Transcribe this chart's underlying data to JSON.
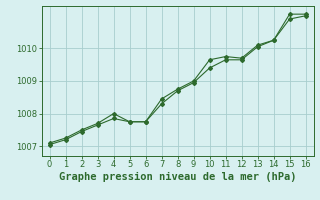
{
  "x": [
    0,
    1,
    2,
    3,
    4,
    5,
    6,
    7,
    8,
    9,
    10,
    11,
    12,
    13,
    14,
    15,
    16
  ],
  "line1": [
    1007.05,
    1007.2,
    1007.45,
    1007.65,
    1007.85,
    1007.75,
    1007.75,
    1008.3,
    1008.7,
    1008.95,
    1009.4,
    1009.65,
    1009.65,
    1010.05,
    1010.25,
    1010.9,
    1011.0
  ],
  "line2": [
    1007.1,
    1007.25,
    1007.5,
    1007.7,
    1008.0,
    1007.75,
    1007.75,
    1008.45,
    1008.75,
    1009.0,
    1009.65,
    1009.75,
    1009.7,
    1010.1,
    1010.25,
    1011.05,
    1011.05
  ],
  "line_color": "#2d6a2d",
  "bg_color": "#d8f0f0",
  "grid_color": "#a8cece",
  "xlabel": "Graphe pression niveau de la mer (hPa)",
  "xlabel_color": "#2d6a2d",
  "xlabel_fontsize": 7.5,
  "ylim": [
    1006.7,
    1011.3
  ],
  "xlim": [
    -0.5,
    16.5
  ],
  "yticks": [
    1007,
    1008,
    1009,
    1010
  ],
  "xticks": [
    0,
    1,
    2,
    3,
    4,
    5,
    6,
    7,
    8,
    9,
    10,
    11,
    12,
    13,
    14,
    15,
    16
  ],
  "tick_fontsize": 6.0
}
